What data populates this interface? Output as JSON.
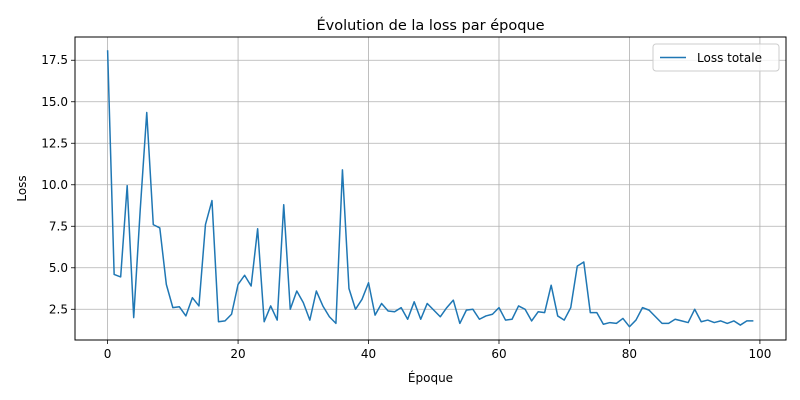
{
  "chart_data": {
    "type": "line",
    "title": "Évolution de la loss par époque",
    "xlabel": "Époque",
    "ylabel": "Loss",
    "xlim": [
      -5,
      104
    ],
    "ylim": [
      0.65,
      18.9
    ],
    "xticks": [
      0,
      20,
      40,
      60,
      80,
      100
    ],
    "yticks": [
      2.5,
      5.0,
      7.5,
      10.0,
      12.5,
      15.0,
      17.5
    ],
    "ytick_labels": [
      "2.5",
      "5.0",
      "7.5",
      "10.0",
      "12.5",
      "15.0",
      "17.5"
    ],
    "grid": true,
    "legend_position": "top-right",
    "series": [
      {
        "name": "Loss totale",
        "color": "#1f77b4",
        "x": [
          0,
          1,
          2,
          3,
          4,
          5,
          6,
          7,
          8,
          9,
          10,
          11,
          12,
          13,
          14,
          15,
          16,
          17,
          18,
          19,
          20,
          21,
          22,
          23,
          24,
          25,
          26,
          27,
          28,
          29,
          30,
          31,
          32,
          33,
          34,
          35,
          36,
          37,
          38,
          39,
          40,
          41,
          42,
          43,
          44,
          45,
          46,
          47,
          48,
          49,
          50,
          51,
          52,
          53,
          54,
          55,
          56,
          57,
          58,
          59,
          60,
          61,
          62,
          63,
          64,
          65,
          66,
          67,
          68,
          69,
          70,
          71,
          72,
          73,
          74,
          75,
          76,
          77,
          78,
          79,
          80,
          81,
          82,
          83,
          84,
          85,
          86,
          87,
          88,
          89,
          90,
          91,
          92,
          93,
          94,
          95,
          96,
          97,
          98,
          99
        ],
        "values": [
          18.1,
          4.6,
          4.45,
          9.95,
          2.0,
          8.5,
          14.35,
          7.6,
          7.4,
          4.0,
          2.6,
          2.65,
          2.1,
          3.2,
          2.7,
          7.6,
          9.05,
          1.75,
          1.8,
          2.2,
          4.0,
          4.55,
          3.9,
          7.35,
          1.75,
          2.7,
          1.85,
          8.8,
          2.5,
          3.6,
          2.9,
          1.85,
          3.6,
          2.7,
          2.05,
          1.65,
          10.9,
          3.75,
          2.5,
          3.1,
          4.1,
          2.15,
          2.85,
          2.4,
          2.35,
          2.6,
          1.9,
          2.95,
          1.9,
          2.85,
          2.45,
          2.05,
          2.6,
          3.05,
          1.65,
          2.45,
          2.5,
          1.9,
          2.1,
          2.2,
          2.6,
          1.85,
          1.9,
          2.7,
          2.5,
          1.8,
          2.35,
          2.3,
          3.95,
          2.1,
          1.85,
          2.6,
          5.1,
          5.35,
          2.3,
          2.3,
          1.6,
          1.7,
          1.65,
          1.95,
          1.45,
          1.85,
          2.6,
          2.45,
          2.05,
          1.65,
          1.65,
          1.9,
          1.8,
          1.7,
          2.5,
          1.75,
          1.85,
          1.7,
          1.8,
          1.65,
          1.8,
          1.55,
          1.8,
          1.8
        ]
      }
    ]
  }
}
